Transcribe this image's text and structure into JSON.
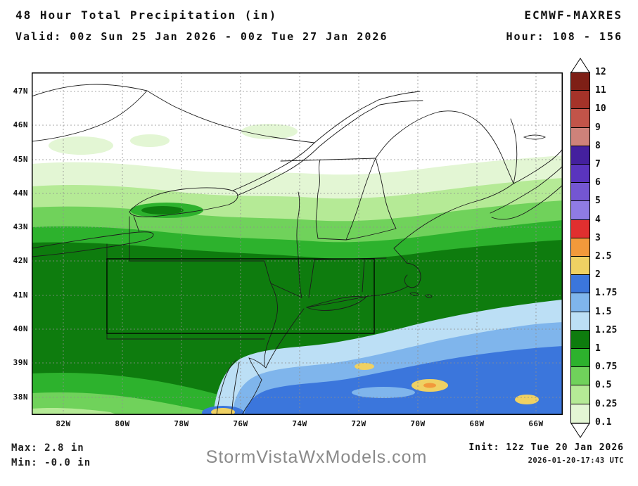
{
  "header": {
    "title": "48 Hour Total Precipitation (in)",
    "valid": "Valid: 00z Sun 25 Jan 2026 - 00z Tue 27 Jan 2026",
    "model": "ECMWF-MAXRES",
    "hour": "Hour: 108 - 156"
  },
  "map": {
    "lat_ticks": [
      "47N",
      "46N",
      "45N",
      "44N",
      "43N",
      "42N",
      "41N",
      "40N",
      "39N",
      "38N"
    ],
    "lon_ticks": [
      "82W",
      "80W",
      "78W",
      "76W",
      "74W",
      "72W",
      "70W",
      "68W",
      "66W"
    ]
  },
  "colorbar": {
    "boundaries": [
      "12",
      "11",
      "10",
      "9",
      "8",
      "7",
      "6",
      "5",
      "4",
      "3",
      "2.5",
      "2",
      "1.75",
      "1.5",
      "1.25",
      "1",
      "0.75",
      "0.5",
      "0.25",
      "0.1"
    ],
    "segment_colors_low_to_high": [
      "#E3F6D4",
      "#B5EA96",
      "#70D25B",
      "#2DB22D",
      "#0E7C0E",
      "#BCDFF5",
      "#7FB5EC",
      "#3B76DC",
      "#EFD163",
      "#F2993B",
      "#E02F2F",
      "#8F7BE4",
      "#7456D2",
      "#5A34BE",
      "#44209E",
      "#CE827A",
      "#C25449",
      "#A53329",
      "#7E1F16"
    ],
    "arrow_color": "#FFFFFF"
  },
  "footer": {
    "max": "Max: 2.8 in",
    "min": "Min: -0.0 in",
    "watermark": "StormVistaWxModels.com",
    "init": "Init: 12z Tue 20 Jan 2026",
    "generated": "2026-01-20-17:43 UTC"
  }
}
